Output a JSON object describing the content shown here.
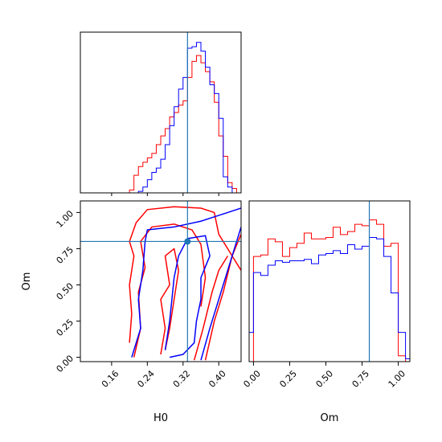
{
  "chart_data": {
    "type": "corner",
    "parameters": [
      "H0",
      "Om"
    ],
    "truth": {
      "H0": 0.33,
      "Om": 0.8
    },
    "colors": {
      "series_a": "#ff0000",
      "series_b": "#0000ff",
      "truth": "#1f77b4"
    },
    "panels": [
      {
        "id": "hist-H0",
        "type": "step-histogram",
        "xlim": [
          0.09,
          0.45
        ],
        "bin_edges": [
          0.09,
          0.1,
          0.11,
          0.12,
          0.13,
          0.14,
          0.15,
          0.16,
          0.17,
          0.18,
          0.19,
          0.2,
          0.21,
          0.22,
          0.23,
          0.24,
          0.25,
          0.26,
          0.27,
          0.28,
          0.29,
          0.3,
          0.31,
          0.32,
          0.33,
          0.34,
          0.35,
          0.36,
          0.37,
          0.38,
          0.39,
          0.4,
          0.41,
          0.42,
          0.43,
          0.44,
          0.45
        ],
        "series": [
          {
            "color": "red",
            "values": [
              0,
              0,
              0,
              0,
              0,
              0,
              0,
              0,
              0,
              0,
              0,
              0.02,
              0.12,
              0.18,
              0.21,
              0.24,
              0.27,
              0.33,
              0.39,
              0.44,
              0.52,
              0.55,
              0.6,
              0.63,
              0.79,
              0.9,
              0.94,
              0.89,
              0.83,
              0.76,
              0.62,
              0.39,
              0.25,
              0.07,
              0.03,
              0
            ]
          },
          {
            "color": "blue",
            "values": [
              0,
              0,
              0,
              0,
              0,
              0,
              0,
              0,
              0,
              0,
              0,
              0,
              0,
              0.01,
              0.04,
              0.09,
              0.14,
              0.17,
              0.23,
              0.33,
              0.46,
              0.59,
              0.71,
              0.79,
              0.99,
              1.0,
              1.03,
              0.97,
              0.86,
              0.74,
              0.68,
              0.51,
              0.11,
              0.04,
              0,
              0
            ]
          }
        ]
      },
      {
        "id": "hist-Om",
        "type": "step-histogram",
        "xlim": [
          -0.03,
          1.08
        ],
        "x_ticks": [
          "0.00",
          "0.25",
          "0.50",
          "0.75",
          "1.00"
        ],
        "x_tick_values": [
          0,
          0.25,
          0.5,
          0.75,
          1.0
        ],
        "xlabel": "Om",
        "bin_edges": [
          -0.03,
          0.0,
          0.05,
          0.1,
          0.15,
          0.2,
          0.25,
          0.3,
          0.35,
          0.4,
          0.45,
          0.5,
          0.55,
          0.6,
          0.65,
          0.7,
          0.75,
          0.8,
          0.85,
          0.9,
          0.95,
          1.0,
          1.05,
          1.08
        ],
        "series": [
          {
            "color": "red",
            "values": [
              0,
              0.72,
              0.73,
              0.84,
              0.82,
              0.72,
              0.78,
              0.81,
              0.88,
              0.84,
              0.84,
              0.85,
              0.92,
              0.87,
              0.89,
              0.94,
              0.93,
              0.97,
              0.94,
              0.79,
              0.81,
              0.04,
              0
            ]
          },
          {
            "color": "blue",
            "values": [
              0.2,
              0.61,
              0.59,
              0.66,
              0.69,
              0.68,
              0.69,
              0.69,
              0.7,
              0.67,
              0.73,
              0.74,
              0.76,
              0.74,
              0.8,
              0.77,
              0.79,
              0.85,
              0.84,
              0.72,
              0.47,
              0.2,
              0.02
            ]
          }
        ]
      },
      {
        "id": "joint-H0-Om",
        "type": "contour",
        "xlim": [
          0.09,
          0.45
        ],
        "ylim": [
          -0.03,
          1.08
        ],
        "x_ticks": [
          "0.16",
          "0.24",
          "0.32",
          "0.40"
        ],
        "x_tick_values": [
          0.16,
          0.24,
          0.32,
          0.4
        ],
        "y_ticks": [
          "0.00",
          "0.25",
          "0.50",
          "0.75",
          "1.00"
        ],
        "y_tick_values": [
          0,
          0.25,
          0.5,
          0.75,
          1.0
        ],
        "xlabel": "H0",
        "ylabel": "Om",
        "contours": [
          {
            "color": "red",
            "points": [
              [
                0.2,
                0.1
              ],
              [
                0.205,
                0.3
              ],
              [
                0.2,
                0.5
              ],
              [
                0.21,
                0.7
              ],
              [
                0.2,
                0.8
              ],
              [
                0.215,
                0.93
              ],
              [
                0.24,
                1.02
              ],
              [
                0.3,
                1.04
              ],
              [
                0.36,
                1.03
              ],
              [
                0.39,
                1.0
              ],
              [
                0.4,
                0.85
              ],
              [
                0.43,
                0.7
              ],
              [
                0.45,
                0.6
              ]
            ]
          },
          {
            "color": "red",
            "points": [
              [
                0.37,
                -0.02
              ],
              [
                0.39,
                0.25
              ],
              [
                0.41,
                0.45
              ],
              [
                0.43,
                0.7
              ],
              [
                0.45,
                0.85
              ]
            ]
          },
          {
            "color": "red",
            "points": [
              [
                0.345,
                -0.02
              ],
              [
                0.365,
                0.2
              ],
              [
                0.385,
                0.45
              ],
              [
                0.4,
                0.6
              ],
              [
                0.42,
                0.7
              ]
            ]
          },
          {
            "color": "red",
            "points": [
              [
                0.21,
                0.0
              ],
              [
                0.225,
                0.2
              ],
              [
                0.22,
                0.45
              ],
              [
                0.235,
                0.62
              ],
              [
                0.225,
                0.8
              ],
              [
                0.25,
                0.9
              ],
              [
                0.3,
                0.92
              ],
              [
                0.34,
                0.88
              ],
              [
                0.36,
                0.78
              ],
              [
                0.37,
                0.55
              ],
              [
                0.36,
                0.35
              ]
            ]
          },
          {
            "color": "red",
            "points": [
              [
                0.27,
                0.02
              ],
              [
                0.28,
                0.2
              ],
              [
                0.27,
                0.4
              ],
              [
                0.29,
                0.5
              ],
              [
                0.28,
                0.7
              ],
              [
                0.3,
                0.75
              ],
              [
                0.31,
                0.6
              ],
              [
                0.3,
                0.4
              ],
              [
                0.29,
                0.2
              ],
              [
                0.28,
                0.05
              ]
            ]
          },
          {
            "color": "blue",
            "points": [
              [
                0.205,
                0.0
              ],
              [
                0.225,
                0.2
              ],
              [
                0.22,
                0.4
              ],
              [
                0.23,
                0.6
              ],
              [
                0.235,
                0.8
              ],
              [
                0.24,
                0.88
              ],
              [
                0.3,
                0.9
              ],
              [
                0.36,
                0.94
              ],
              [
                0.39,
                0.97
              ],
              [
                0.42,
                1.0
              ],
              [
                0.45,
                1.03
              ]
            ]
          },
          {
            "color": "blue",
            "points": [
              [
                0.28,
                0.05
              ],
              [
                0.29,
                0.25
              ],
              [
                0.295,
                0.4
              ],
              [
                0.3,
                0.55
              ],
              [
                0.31,
                0.7
              ],
              [
                0.33,
                0.82
              ],
              [
                0.37,
                0.84
              ],
              [
                0.38,
                0.7
              ],
              [
                0.36,
                0.55
              ],
              [
                0.36,
                0.4
              ],
              [
                0.35,
                0.25
              ],
              [
                0.345,
                0.1
              ],
              [
                0.32,
                0.02
              ],
              [
                0.29,
                0.0
              ]
            ]
          },
          {
            "color": "blue",
            "points": [
              [
                0.36,
                -0.02
              ],
              [
                0.38,
                0.2
              ],
              [
                0.4,
                0.4
              ],
              [
                0.42,
                0.6
              ],
              [
                0.44,
                0.8
              ],
              [
                0.45,
                0.9
              ]
            ]
          }
        ]
      }
    ]
  }
}
